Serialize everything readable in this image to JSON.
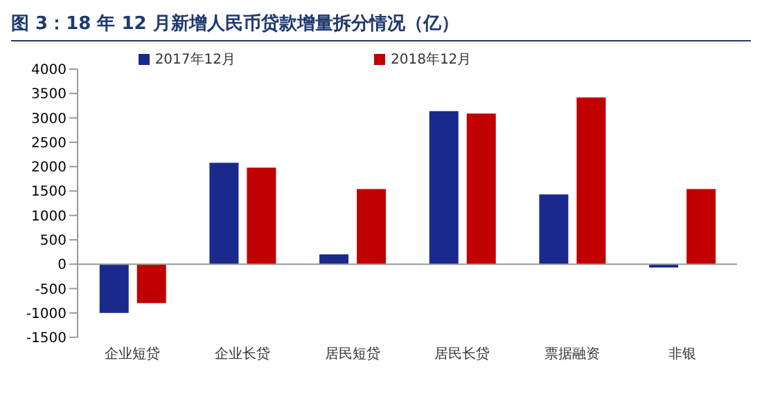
{
  "chart_data": {
    "type": "bar",
    "title": "图 3：18 年 12 月新增人民币贷款增量拆分情况（亿）",
    "categories": [
      "企业短贷",
      "企业长贷",
      "居民短贷",
      "居民长贷",
      "票据融资",
      "非银"
    ],
    "series": [
      {
        "name": "2017年12月",
        "color": "#1a2a8c",
        "values": [
          -1000,
          2080,
          200,
          3140,
          1430,
          -70
        ]
      },
      {
        "name": "2018年12月",
        "color": "#c00000",
        "values": [
          -800,
          1980,
          1540,
          3090,
          3420,
          1540
        ]
      }
    ],
    "ylim": [
      -1500,
      4000
    ],
    "yticks": [
      -1500,
      -1000,
      -500,
      0,
      500,
      1000,
      1500,
      2000,
      2500,
      3000,
      3500,
      4000
    ],
    "legend": "top"
  }
}
